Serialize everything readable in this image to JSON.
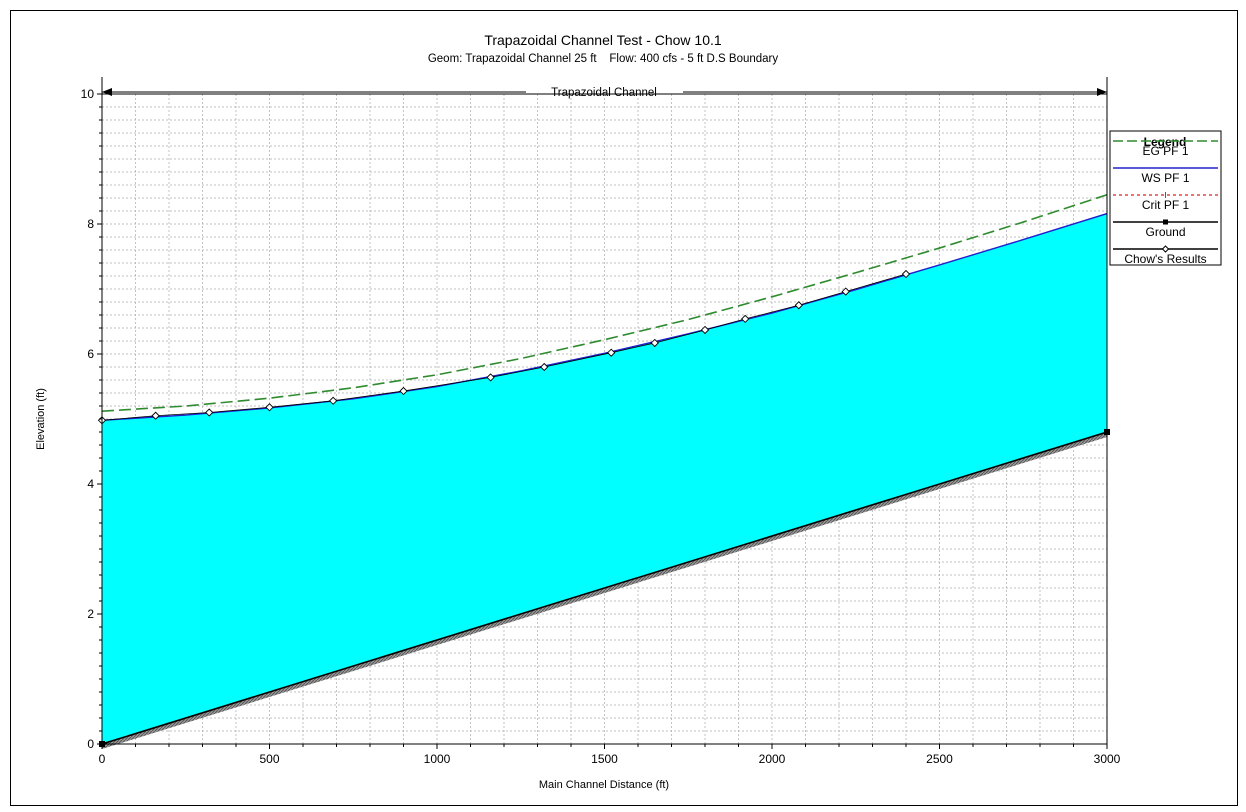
{
  "chart_data": {
    "type": "line",
    "title": "Trapazoidal Channel Test - Chow 10.1",
    "subtitle": "Geom: Trapazoidal Channel 25 ft    Flow: 400 cfs - 5 ft D.S Boundary",
    "reach_label": "Trapazoidal Channel",
    "xlabel": "Main Channel Distance (ft)",
    "ylabel": "Elevation (ft)",
    "xlim": [
      0,
      3000
    ],
    "ylim": [
      0,
      10
    ],
    "x_ticks": [
      0,
      500,
      1000,
      1500,
      2000,
      2500,
      3000
    ],
    "y_ticks": [
      0,
      2,
      4,
      6,
      8,
      10
    ],
    "x_minor_step": 100,
    "y_minor_step": 0.2,
    "grid": true,
    "legend": {
      "title": "Legend",
      "position": "right",
      "entries": [
        "EG  PF 1",
        "WS  PF 1",
        "Crit  PF 1",
        "Ground",
        "Chow's Results"
      ]
    },
    "colors": {
      "eg": "#2e8b2e",
      "ws": "#2020cc",
      "crit": "#dd2222",
      "ground": "#000000",
      "water": "#00ffff",
      "grid": "#aaaaaa"
    },
    "series": [
      {
        "name": "EG  PF 1",
        "x": [
          0,
          250,
          500,
          750,
          1000,
          1250,
          1500,
          1750,
          2000,
          2250,
          2500,
          2750,
          3000
        ],
        "y": [
          5.12,
          5.2,
          5.32,
          5.48,
          5.68,
          5.93,
          6.22,
          6.53,
          6.88,
          7.25,
          7.63,
          8.03,
          8.45
        ]
      },
      {
        "name": "WS  PF 1",
        "x": [
          0,
          250,
          500,
          750,
          1000,
          1250,
          1500,
          1750,
          2000,
          2250,
          2500,
          2750,
          3000
        ],
        "y": [
          4.98,
          5.06,
          5.17,
          5.31,
          5.5,
          5.74,
          6.01,
          6.31,
          6.63,
          6.99,
          7.37,
          7.76,
          8.16
        ]
      },
      {
        "name": "Crit  PF 1",
        "x": [
          0,
          3000
        ],
        "y": [
          0.0,
          4.8
        ]
      },
      {
        "name": "Ground",
        "x": [
          0,
          3000
        ],
        "y": [
          0.0,
          4.8
        ]
      },
      {
        "name": "Chow's Results",
        "x": [
          0,
          160,
          320,
          500,
          690,
          900,
          1160,
          1320,
          1520,
          1650,
          1800,
          1920,
          2080,
          2220,
          2400
        ],
        "y": [
          4.98,
          5.05,
          5.1,
          5.18,
          5.28,
          5.43,
          5.64,
          5.8,
          6.02,
          6.17,
          6.37,
          6.54,
          6.75,
          6.96,
          7.23
        ]
      }
    ]
  }
}
